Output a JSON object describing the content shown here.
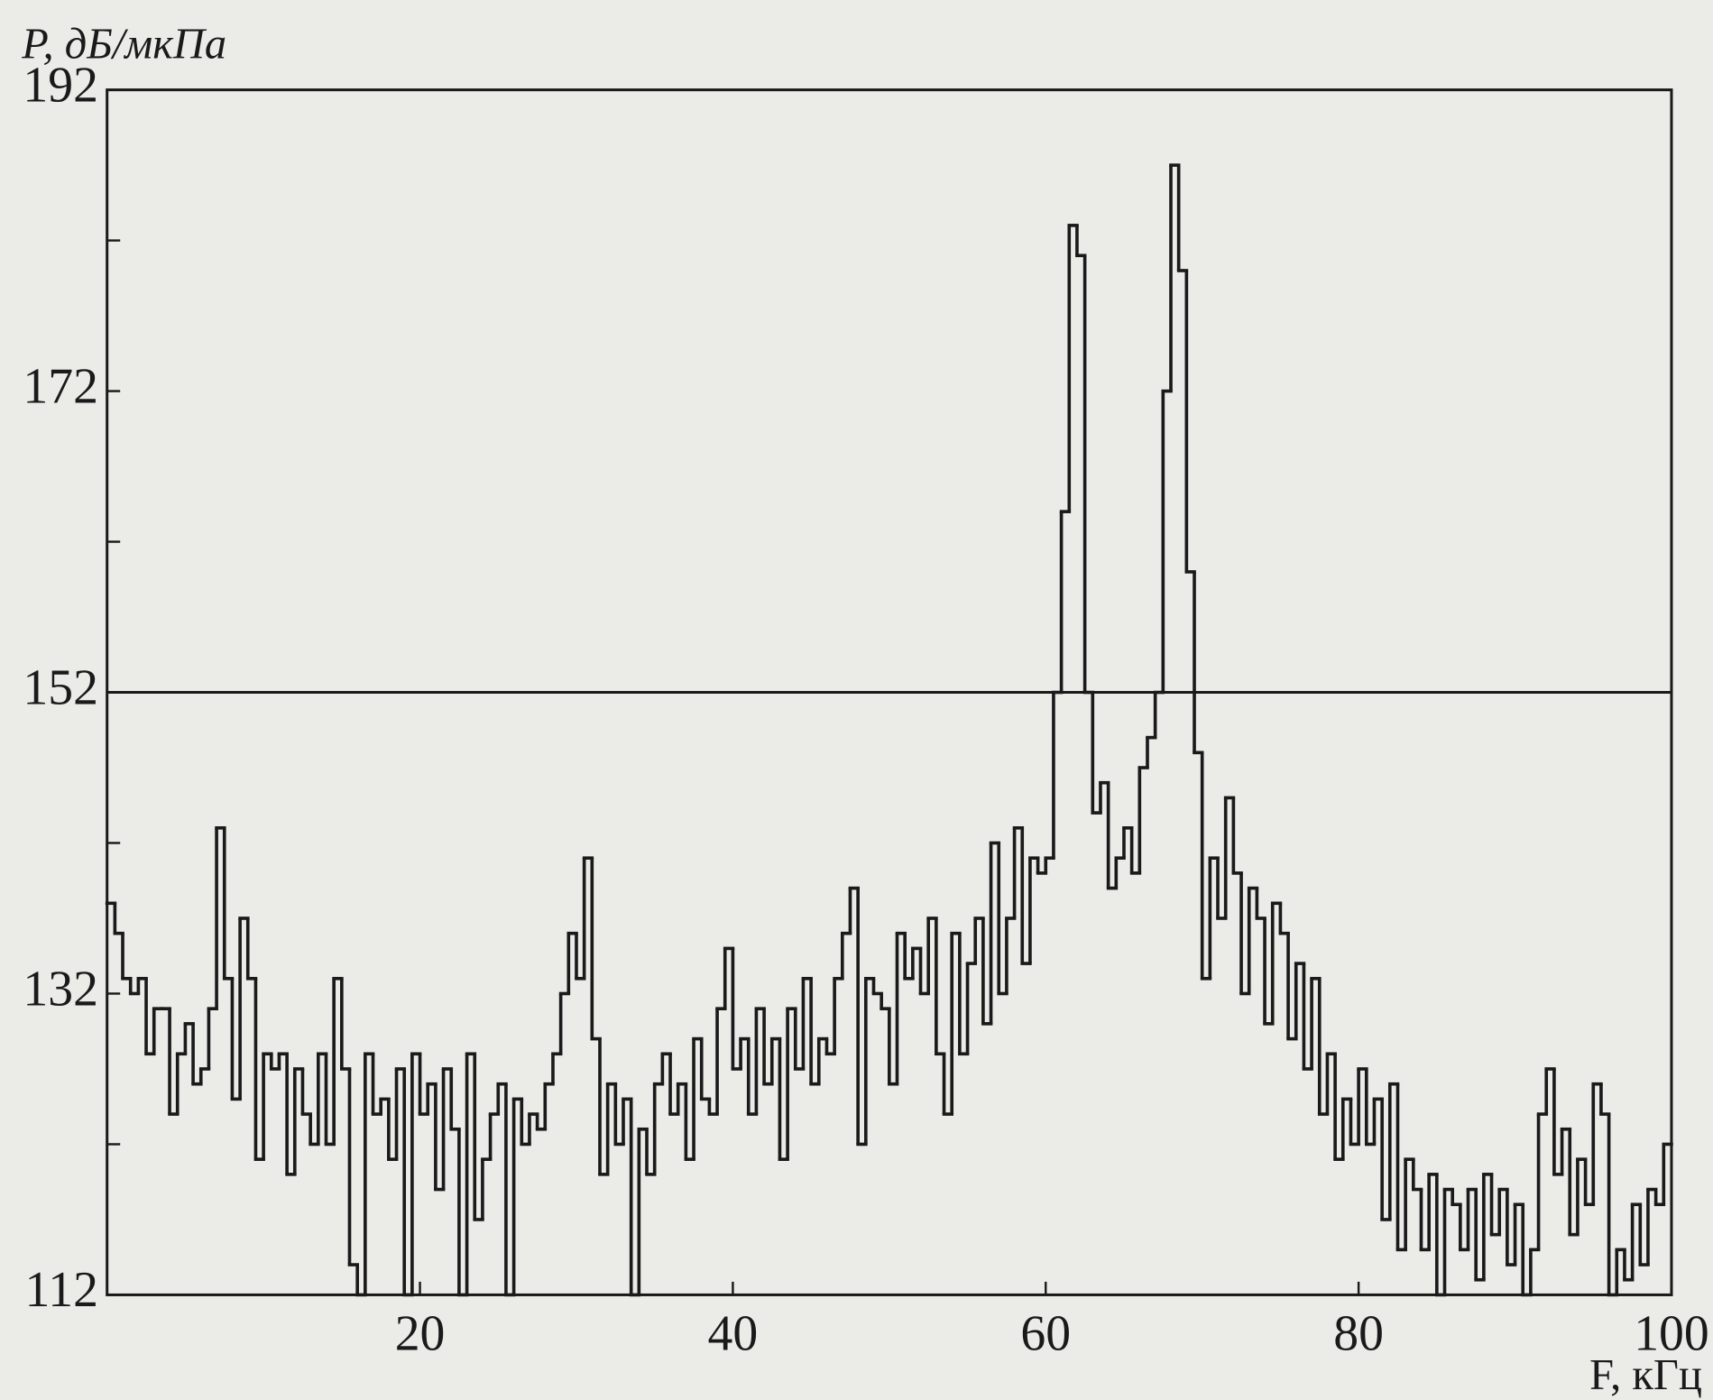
{
  "chart_data": {
    "type": "step",
    "y_label": "P, дБ/мкПа",
    "x_label": "F, кГц",
    "xlim": [
      0,
      100
    ],
    "xticks": [
      20,
      40,
      60,
      80,
      100
    ],
    "ylim": [
      112,
      192
    ],
    "yticks": [
      112,
      132,
      152,
      172,
      192
    ],
    "y_minor_ticks": [
      122,
      142,
      162,
      182
    ],
    "reference_line": 152,
    "color": "#1a1a1a",
    "x": [
      0,
      0.5,
      1,
      1.5,
      2,
      2.5,
      3,
      3.5,
      4,
      4.5,
      5,
      5.5,
      6,
      6.5,
      7,
      7.5,
      8,
      8.5,
      9,
      9.5,
      10,
      10.5,
      11,
      11.5,
      12,
      12.5,
      13,
      13.5,
      14,
      14.5,
      15,
      15.5,
      16,
      16.5,
      17,
      17.5,
      18,
      18.5,
      19,
      19.5,
      20,
      20.5,
      21,
      21.5,
      22,
      22.5,
      23,
      23.5,
      24,
      24.5,
      25,
      25.5,
      26,
      26.5,
      27,
      27.5,
      28,
      28.5,
      29,
      29.5,
      30,
      30.5,
      31,
      31.5,
      32,
      32.5,
      33,
      33.5,
      34,
      34.5,
      35,
      35.5,
      36,
      36.5,
      37,
      37.5,
      38,
      38.5,
      39,
      39.5,
      40,
      40.5,
      41,
      41.5,
      42,
      42.5,
      43,
      43.5,
      44,
      44.5,
      45,
      45.5,
      46,
      46.5,
      47,
      47.5,
      48,
      48.5,
      49,
      49.5,
      50,
      50.5,
      51,
      51.5,
      52,
      52.5,
      53,
      53.5,
      54,
      54.5,
      55,
      55.5,
      56,
      56.5,
      57,
      57.5,
      58,
      58.5,
      59,
      59.5,
      60,
      60.5,
      61,
      61.5,
      62,
      62.5,
      63,
      63.5,
      64,
      64.5,
      65,
      65.5,
      66,
      66.5,
      67,
      67.5,
      68,
      68.5,
      69,
      69.5,
      70,
      70.5,
      71,
      71.5,
      72,
      72.5,
      73,
      73.5,
      74,
      74.5,
      75,
      75.5,
      76,
      76.5,
      77,
      77.5,
      78,
      78.5,
      79,
      79.5,
      80,
      80.5,
      81,
      81.5,
      82,
      82.5,
      83,
      83.5,
      84,
      84.5,
      85,
      85.5,
      86,
      86.5,
      87,
      87.5,
      88,
      88.5,
      89,
      89.5,
      90,
      90.5,
      91,
      91.5,
      92,
      92.5,
      93,
      93.5,
      94,
      94.5,
      95,
      95.5,
      96,
      96.5,
      97,
      97.5,
      98,
      98.5,
      99,
      99.5
    ],
    "values": [
      138,
      136,
      133,
      132,
      133,
      128,
      131,
      131,
      124,
      128,
      130,
      126,
      127,
      131,
      143,
      133,
      125,
      137,
      133,
      121,
      128,
      127,
      128,
      120,
      127,
      124,
      122,
      128,
      122,
      133,
      127,
      114,
      112,
      128,
      124,
      125,
      121,
      127,
      112,
      128,
      124,
      126,
      119,
      127,
      123,
      112,
      128,
      117,
      121,
      124,
      126,
      112,
      125,
      122,
      124,
      123,
      126,
      128,
      132,
      136,
      133,
      141,
      129,
      120,
      126,
      122,
      125,
      112,
      123,
      120,
      126,
      128,
      124,
      126,
      121,
      129,
      125,
      124,
      131,
      135,
      127,
      129,
      124,
      131,
      126,
      129,
      121,
      131,
      127,
      133,
      126,
      129,
      128,
      133,
      136,
      139,
      122,
      133,
      132,
      131,
      126,
      136,
      133,
      135,
      132,
      137,
      128,
      124,
      136,
      128,
      134,
      137,
      130,
      142,
      132,
      137,
      143,
      134,
      141,
      140,
      141,
      152,
      164,
      183,
      181,
      152,
      144,
      146,
      139,
      141,
      143,
      140,
      147,
      149,
      152,
      172,
      187,
      180,
      160,
      148,
      133,
      141,
      137,
      145,
      140,
      132,
      139,
      137,
      130,
      138,
      136,
      129,
      134,
      127,
      133,
      124,
      128,
      121,
      125,
      122,
      127,
      122,
      125,
      117,
      126,
      115,
      121,
      119,
      115,
      120,
      112,
      119,
      118,
      115,
      119,
      113,
      120,
      116,
      119,
      114,
      118,
      112,
      115,
      124,
      127,
      120,
      123,
      116,
      121,
      118,
      126,
      124,
      112,
      115,
      113,
      118,
      114,
      119,
      118,
      122
    ]
  }
}
